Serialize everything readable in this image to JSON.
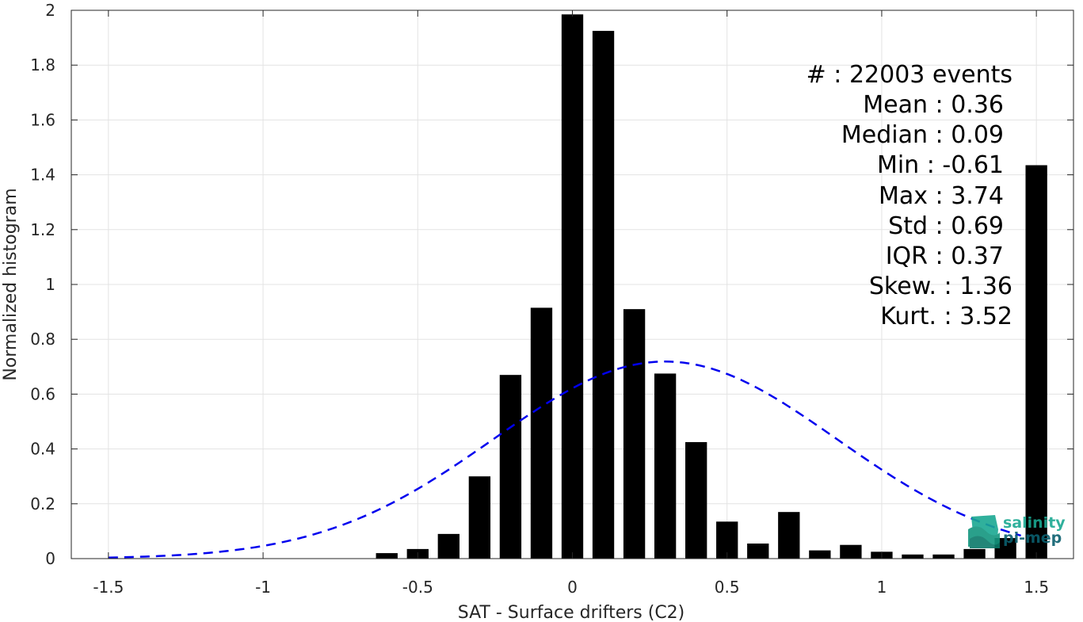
{
  "chart_data": {
    "type": "bar",
    "xlabel": "SAT - Surface drifters (C2)",
    "ylabel": "Normalized histogram",
    "xlim": [
      -1.62,
      1.62
    ],
    "ylim": [
      0,
      2
    ],
    "x_ticks": [
      -1.5,
      -1,
      -0.5,
      0,
      0.5,
      1,
      1.5
    ],
    "x_tick_labels": [
      "-1.5",
      "-1",
      "-0.5",
      "0",
      "0.5",
      "1",
      "1.5"
    ],
    "y_ticks": [
      0,
      0.2,
      0.4,
      0.6,
      0.8,
      1,
      1.2,
      1.4,
      1.6,
      1.8,
      2
    ],
    "y_tick_labels": [
      "0",
      "0.2",
      "0.4",
      "0.6",
      "0.8",
      "1",
      "1.2",
      "1.4",
      "1.6",
      "1.8",
      "2"
    ],
    "grid": true,
    "bar_color": "#000000",
    "bar_width": 0.07,
    "bars": {
      "x": [
        -0.6,
        -0.5,
        -0.4,
        -0.3,
        -0.2,
        -0.1,
        0.0,
        0.1,
        0.2,
        0.3,
        0.4,
        0.5,
        0.6,
        0.7,
        0.8,
        0.9,
        1.0,
        1.1,
        1.2,
        1.3,
        1.4,
        1.5
      ],
      "values": [
        0.02,
        0.035,
        0.09,
        0.3,
        0.67,
        0.915,
        1.985,
        1.925,
        0.91,
        0.675,
        0.425,
        0.135,
        0.055,
        0.17,
        0.03,
        0.05,
        0.025,
        0.015,
        0.015,
        0.035,
        0.075,
        1.435
      ]
    },
    "fit_curve": {
      "style": "dashed",
      "color": "#0000ee",
      "distribution": "normal",
      "mean": 0.3,
      "std": 0.555,
      "x_range": [
        -1.5,
        1.45
      ]
    }
  },
  "stats": [
    {
      "label": "#  : 22003 events"
    },
    {
      "label": "Mean : 0.36"
    },
    {
      "label": "Median : 0.09"
    },
    {
      "label": "Min : -0.61"
    },
    {
      "label": "Max : 3.74"
    },
    {
      "label": "Std : 0.69"
    },
    {
      "label": "IQR : 0.37"
    },
    {
      "label": "Skew. : 1.36"
    },
    {
      "label": "Kurt. : 3.52"
    }
  ],
  "logo": {
    "line1": "salinity",
    "line2": "pi-mep",
    "icon": "logo-wave-icon",
    "color1": "#1aa892",
    "color2": "#0b5f6e"
  }
}
